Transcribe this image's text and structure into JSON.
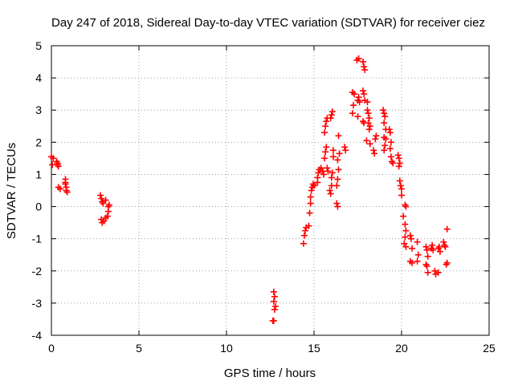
{
  "chart_data": {
    "type": "scatter",
    "title": "Day 247 of 2018, Sidereal Day-to-day VTEC variation (SDTVAR) for receiver ciez",
    "xlabel": "GPS time / hours",
    "ylabel": "SDTVAR / TECUs",
    "xlim": [
      0,
      25
    ],
    "ylim": [
      -4,
      5
    ],
    "xticks": [
      0,
      5,
      10,
      15,
      20,
      25
    ],
    "yticks": [
      -4,
      -3,
      -2,
      -1,
      0,
      1,
      2,
      3,
      4,
      5
    ],
    "marker": "plus",
    "color": "#ff0000",
    "grid": true,
    "series": [
      {
        "name": "SDTVAR",
        "points": [
          [
            0.0,
            1.55
          ],
          [
            0.05,
            1.3
          ],
          [
            0.1,
            1.5
          ],
          [
            0.3,
            1.4
          ],
          [
            0.35,
            1.3
          ],
          [
            0.4,
            1.25
          ],
          [
            0.35,
            1.35
          ],
          [
            0.4,
            0.6
          ],
          [
            0.5,
            0.55
          ],
          [
            0.8,
            0.85
          ],
          [
            0.8,
            0.7
          ],
          [
            0.85,
            0.5
          ],
          [
            0.9,
            0.45
          ],
          [
            0.85,
            0.6
          ],
          [
            0.8,
            0.75
          ],
          [
            2.8,
            0.35
          ],
          [
            2.85,
            0.25
          ],
          [
            2.9,
            0.15
          ],
          [
            2.95,
            0.1
          ],
          [
            2.85,
            -0.4
          ],
          [
            2.9,
            -0.5
          ],
          [
            3.0,
            -0.45
          ],
          [
            3.1,
            0.2
          ],
          [
            3.1,
            -0.35
          ],
          [
            3.2,
            -0.3
          ],
          [
            3.25,
            0.0
          ],
          [
            3.25,
            -0.15
          ],
          [
            3.3,
            0.05
          ],
          [
            12.7,
            -2.65
          ],
          [
            12.75,
            -2.8
          ],
          [
            12.7,
            -2.95
          ],
          [
            12.8,
            -3.1
          ],
          [
            12.75,
            -3.2
          ],
          [
            12.7,
            -3.55
          ],
          [
            12.65,
            -3.55
          ],
          [
            14.4,
            -1.15
          ],
          [
            14.45,
            -0.9
          ],
          [
            14.5,
            -0.75
          ],
          [
            14.55,
            -0.65
          ],
          [
            14.7,
            -0.6
          ],
          [
            14.75,
            -0.2
          ],
          [
            14.8,
            0.1
          ],
          [
            14.8,
            0.3
          ],
          [
            14.85,
            0.5
          ],
          [
            14.9,
            0.6
          ],
          [
            14.95,
            0.7
          ],
          [
            15.0,
            0.65
          ],
          [
            15.2,
            0.75
          ],
          [
            15.2,
            0.9
          ],
          [
            15.25,
            1.05
          ],
          [
            15.3,
            1.15
          ],
          [
            15.4,
            1.2
          ],
          [
            15.5,
            1.1
          ],
          [
            15.55,
            1.0
          ],
          [
            15.6,
            1.5
          ],
          [
            15.65,
            1.7
          ],
          [
            15.7,
            1.85
          ],
          [
            15.6,
            2.3
          ],
          [
            15.65,
            2.5
          ],
          [
            15.7,
            2.65
          ],
          [
            15.75,
            2.75
          ],
          [
            15.8,
            1.1
          ],
          [
            15.75,
            1.2
          ],
          [
            15.9,
            0.5
          ],
          [
            15.95,
            0.4
          ],
          [
            16.0,
            0.65
          ],
          [
            16.0,
            0.9
          ],
          [
            16.05,
            1.05
          ],
          [
            16.1,
            1.55
          ],
          [
            16.1,
            1.75
          ],
          [
            15.95,
            2.75
          ],
          [
            16.0,
            2.85
          ],
          [
            16.05,
            2.95
          ],
          [
            16.3,
            0.65
          ],
          [
            16.35,
            0.85
          ],
          [
            16.4,
            1.15
          ],
          [
            16.35,
            1.45
          ],
          [
            16.45,
            1.65
          ],
          [
            16.4,
            2.2
          ],
          [
            16.3,
            0.1
          ],
          [
            16.35,
            0.0
          ],
          [
            16.8,
            1.75
          ],
          [
            16.75,
            1.85
          ],
          [
            17.2,
            2.9
          ],
          [
            17.25,
            3.15
          ],
          [
            17.3,
            3.5
          ],
          [
            17.2,
            3.55
          ],
          [
            17.5,
            3.3
          ],
          [
            17.55,
            3.4
          ],
          [
            17.6,
            3.25
          ],
          [
            17.5,
            2.8
          ],
          [
            17.45,
            4.55
          ],
          [
            17.55,
            4.6
          ],
          [
            17.8,
            4.5
          ],
          [
            17.85,
            4.35
          ],
          [
            17.9,
            4.25
          ],
          [
            17.8,
            3.6
          ],
          [
            17.85,
            3.5
          ],
          [
            17.9,
            3.3
          ],
          [
            17.8,
            2.65
          ],
          [
            17.85,
            2.6
          ],
          [
            18.05,
            3.0
          ],
          [
            18.1,
            2.9
          ],
          [
            18.15,
            2.75
          ],
          [
            18.1,
            2.6
          ],
          [
            18.2,
            2.5
          ],
          [
            18.15,
            2.4
          ],
          [
            18.0,
            2.05
          ],
          [
            18.05,
            3.25
          ],
          [
            18.2,
            1.95
          ],
          [
            18.4,
            1.75
          ],
          [
            18.45,
            1.65
          ],
          [
            18.5,
            2.1
          ],
          [
            18.55,
            2.2
          ],
          [
            18.95,
            3.0
          ],
          [
            19.0,
            2.9
          ],
          [
            19.05,
            2.8
          ],
          [
            19.0,
            2.6
          ],
          [
            19.1,
            2.4
          ],
          [
            19.0,
            2.15
          ],
          [
            19.1,
            2.1
          ],
          [
            19.05,
            1.9
          ],
          [
            19.0,
            1.75
          ],
          [
            19.3,
            2.4
          ],
          [
            19.35,
            2.3
          ],
          [
            19.4,
            2.0
          ],
          [
            19.35,
            1.8
          ],
          [
            19.4,
            1.55
          ],
          [
            19.45,
            1.4
          ],
          [
            19.5,
            1.35
          ],
          [
            19.8,
            1.6
          ],
          [
            19.85,
            1.5
          ],
          [
            19.9,
            1.35
          ],
          [
            19.85,
            1.25
          ],
          [
            19.9,
            0.8
          ],
          [
            19.95,
            0.65
          ],
          [
            20.0,
            0.55
          ],
          [
            20.0,
            0.35
          ],
          [
            20.2,
            0.05
          ],
          [
            20.25,
            0.0
          ],
          [
            20.1,
            -0.3
          ],
          [
            20.2,
            -0.55
          ],
          [
            20.25,
            -0.75
          ],
          [
            20.2,
            -0.95
          ],
          [
            20.15,
            -1.15
          ],
          [
            20.25,
            -1.25
          ],
          [
            20.5,
            -0.9
          ],
          [
            20.55,
            -1.0
          ],
          [
            20.6,
            -1.3
          ],
          [
            20.5,
            -1.7
          ],
          [
            20.6,
            -1.75
          ],
          [
            20.9,
            -1.1
          ],
          [
            20.95,
            -1.5
          ],
          [
            20.9,
            -1.7
          ],
          [
            21.4,
            -1.25
          ],
          [
            21.45,
            -1.35
          ],
          [
            21.5,
            -1.55
          ],
          [
            21.4,
            -1.8
          ],
          [
            21.45,
            -1.85
          ],
          [
            21.5,
            -2.05
          ],
          [
            21.7,
            -1.3
          ],
          [
            21.75,
            -1.2
          ],
          [
            21.8,
            -1.35
          ],
          [
            21.9,
            -2.0
          ],
          [
            21.95,
            -2.1
          ],
          [
            22.1,
            -1.3
          ],
          [
            22.15,
            -1.25
          ],
          [
            22.2,
            -1.4
          ],
          [
            22.1,
            -2.05
          ],
          [
            22.4,
            -1.1
          ],
          [
            22.45,
            -1.2
          ],
          [
            22.5,
            -1.25
          ],
          [
            22.55,
            -1.8
          ],
          [
            22.6,
            -1.75
          ],
          [
            22.6,
            -0.7
          ]
        ]
      }
    ]
  }
}
